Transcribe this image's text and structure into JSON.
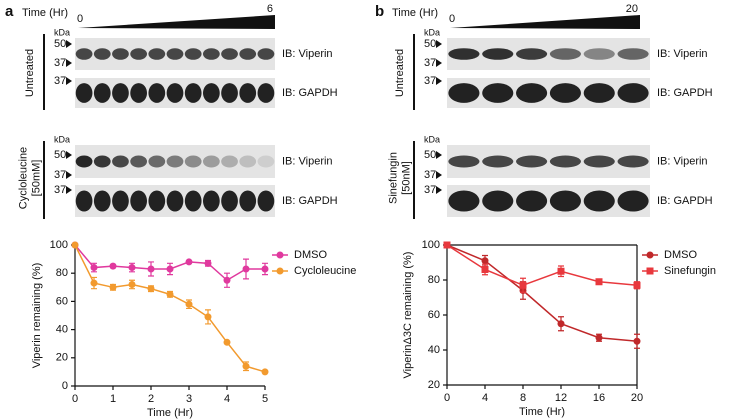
{
  "panels": [
    {
      "label": "a",
      "time_label": "Time (Hr)",
      "time_start": "0",
      "time_end": "6",
      "blots": [
        {
          "condition": [
            "Untreated"
          ],
          "kda": "kDa",
          "top_markers": [
            "50",
            "37"
          ],
          "top_ib": "IB: Viperin",
          "bottom_marker": "37",
          "bottom_ib": "IB: GAPDH"
        },
        {
          "condition": [
            "Cycloleucine",
            "[50mM]"
          ],
          "kda": "kDa",
          "top_markers": [
            "50",
            "37"
          ],
          "top_ib": "IB: Viperin",
          "bottom_marker": "37",
          "bottom_ib": "IB: GAPDH"
        }
      ]
    },
    {
      "label": "b",
      "time_label": "Time (Hr)",
      "time_start": "0",
      "time_end": "20",
      "blots": [
        {
          "condition": [
            "Untreated"
          ],
          "kda": "kDa",
          "top_markers": [
            "50",
            "37"
          ],
          "top_ib": "IB: Viperin",
          "bottom_marker": "37",
          "bottom_ib": "IB: GAPDH"
        },
        {
          "condition": [
            "Sinefungin",
            "[50nM]"
          ],
          "kda": "kDa",
          "top_markers": [
            "50",
            "37"
          ],
          "top_ib": "IB: Viperin",
          "bottom_marker": "37",
          "bottom_ib": "IB: GAPDH"
        }
      ]
    }
  ],
  "chart_data": [
    {
      "type": "line",
      "x_label": "Time (Hr)",
      "y_label": "Viperin remaining (%)",
      "x": [
        0,
        0.5,
        1,
        1.5,
        2,
        2.5,
        3,
        3.5,
        4,
        4.5,
        5
      ],
      "series": [
        {
          "name": "DMSO",
          "color": "#e0399e",
          "marker": "circle",
          "values": [
            100,
            84,
            85,
            84,
            83,
            83,
            88,
            87,
            75,
            83,
            83
          ],
          "errors": [
            0,
            3,
            1,
            3,
            5,
            4,
            1,
            2,
            5,
            7,
            4
          ]
        },
        {
          "name": "Cycloleucine",
          "color": "#f29a2e",
          "marker": "circle",
          "values": [
            100,
            73,
            70,
            72,
            69,
            65,
            58,
            49,
            31,
            14,
            10
          ],
          "errors": [
            0,
            4,
            2,
            3,
            2,
            2,
            3,
            5,
            0,
            3,
            0
          ]
        }
      ],
      "xlim": [
        0,
        5
      ],
      "xticks": [
        0,
        1,
        2,
        3,
        4,
        5
      ],
      "ylim": [
        0,
        100
      ],
      "yticks": [
        0,
        20,
        40,
        60,
        80,
        100
      ],
      "frame": false
    },
    {
      "type": "line",
      "x_label": "Time (Hr)",
      "y_label": "ViperinΔ3C remaining (%)",
      "x": [
        0,
        4,
        8,
        12,
        16,
        20
      ],
      "series": [
        {
          "name": "DMSO",
          "color": "#c0282a",
          "marker": "circle",
          "values": [
            100,
            91,
            74,
            55,
            47,
            45
          ],
          "errors": [
            0,
            3,
            5,
            4,
            2,
            4
          ]
        },
        {
          "name": "Sinefungin",
          "color": "#e8383d",
          "marker": "square",
          "values": [
            100,
            86,
            77,
            85,
            79,
            77
          ],
          "errors": [
            0,
            3,
            4,
            3,
            1,
            2
          ]
        }
      ],
      "xlim": [
        0,
        20
      ],
      "xticks": [
        0,
        4,
        8,
        12,
        16,
        20
      ],
      "ylim": [
        20,
        100
      ],
      "yticks": [
        20,
        40,
        60,
        80,
        100
      ],
      "frame": true
    }
  ]
}
